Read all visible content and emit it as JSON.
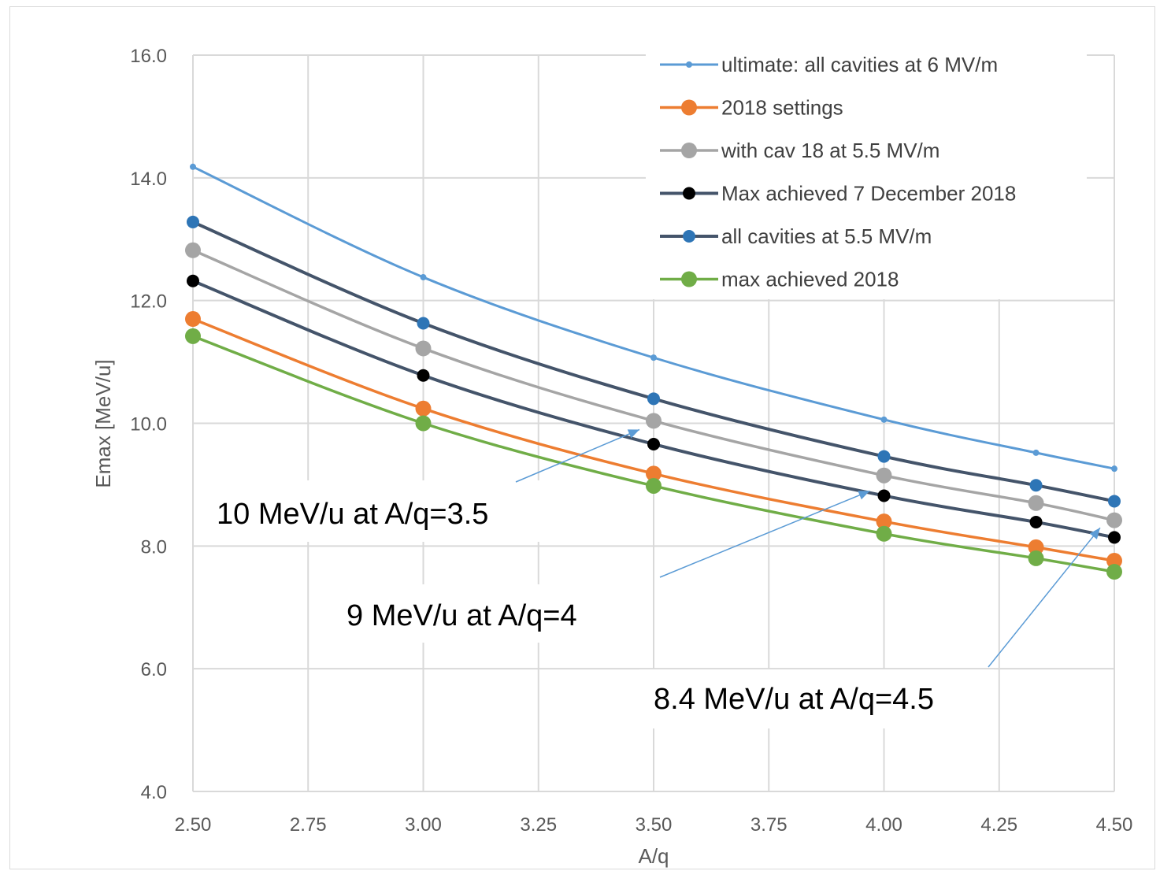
{
  "chart_data": {
    "type": "line",
    "xlabel": "A/q",
    "ylabel": "Emax [MeV/u]",
    "xlim": [
      2.5,
      4.5
    ],
    "ylim": [
      4.0,
      16.0
    ],
    "xticks": [
      2.5,
      2.75,
      3.0,
      3.25,
      3.5,
      3.75,
      4.0,
      4.25,
      4.5
    ],
    "xtick_labels": [
      "2.50",
      "2.75",
      "3.00",
      "3.25",
      "3.50",
      "3.75",
      "4.00",
      "4.25",
      "4.50"
    ],
    "yticks": [
      4,
      6,
      8,
      10,
      12,
      14,
      16
    ],
    "ytick_labels": [
      "4.0",
      "6.0",
      "8.0",
      "10.0",
      "12.0",
      "14.0",
      "16.0"
    ],
    "grid": "on",
    "legend_position": "top-right",
    "x": [
      2.5,
      3.0,
      3.5,
      4.0,
      4.33,
      4.5
    ],
    "series": [
      {
        "name": "ultimate: all cavities at 6 MV/m",
        "color": "#5b9bd5",
        "marker": "small",
        "values": [
          14.18,
          12.38,
          11.07,
          10.06,
          9.52,
          9.26
        ]
      },
      {
        "name": "2018 settings",
        "color": "#ed7d31",
        "marker": "large",
        "values": [
          11.7,
          10.24,
          9.18,
          8.4,
          7.98,
          7.76
        ]
      },
      {
        "name": "with cav 18 at 5.5 MV/m",
        "color": "#a5a5a5",
        "marker": "large",
        "values": [
          12.82,
          11.22,
          10.04,
          9.15,
          8.7,
          8.42
        ]
      },
      {
        "name": "Max achieved 7 December 2018",
        "color": "#44546a",
        "marker_color": "#000000",
        "marker": "medium",
        "values": [
          12.32,
          10.78,
          9.66,
          8.82,
          8.39,
          8.14
        ]
      },
      {
        "name": "all cavities at 5.5 MV/m",
        "color": "#44546a",
        "marker_color": "#2e75b6",
        "marker": "medium",
        "values": [
          13.28,
          11.63,
          10.4,
          9.46,
          8.99,
          8.73
        ]
      },
      {
        "name": "max achieved 2018",
        "color": "#70ad47",
        "marker": "large",
        "values": [
          11.42,
          10.0,
          8.98,
          8.2,
          7.8,
          7.58
        ]
      }
    ],
    "annotations": [
      {
        "text": "10 MeV/u at A/q=3.5",
        "x": 3.5,
        "y": 10.0
      },
      {
        "text": "9 MeV/u at A/q=4",
        "x": 4.0,
        "y": 9.0
      },
      {
        "text": "8.4 MeV/u at A/q=4.5",
        "x": 4.5,
        "y": 8.4
      }
    ]
  }
}
